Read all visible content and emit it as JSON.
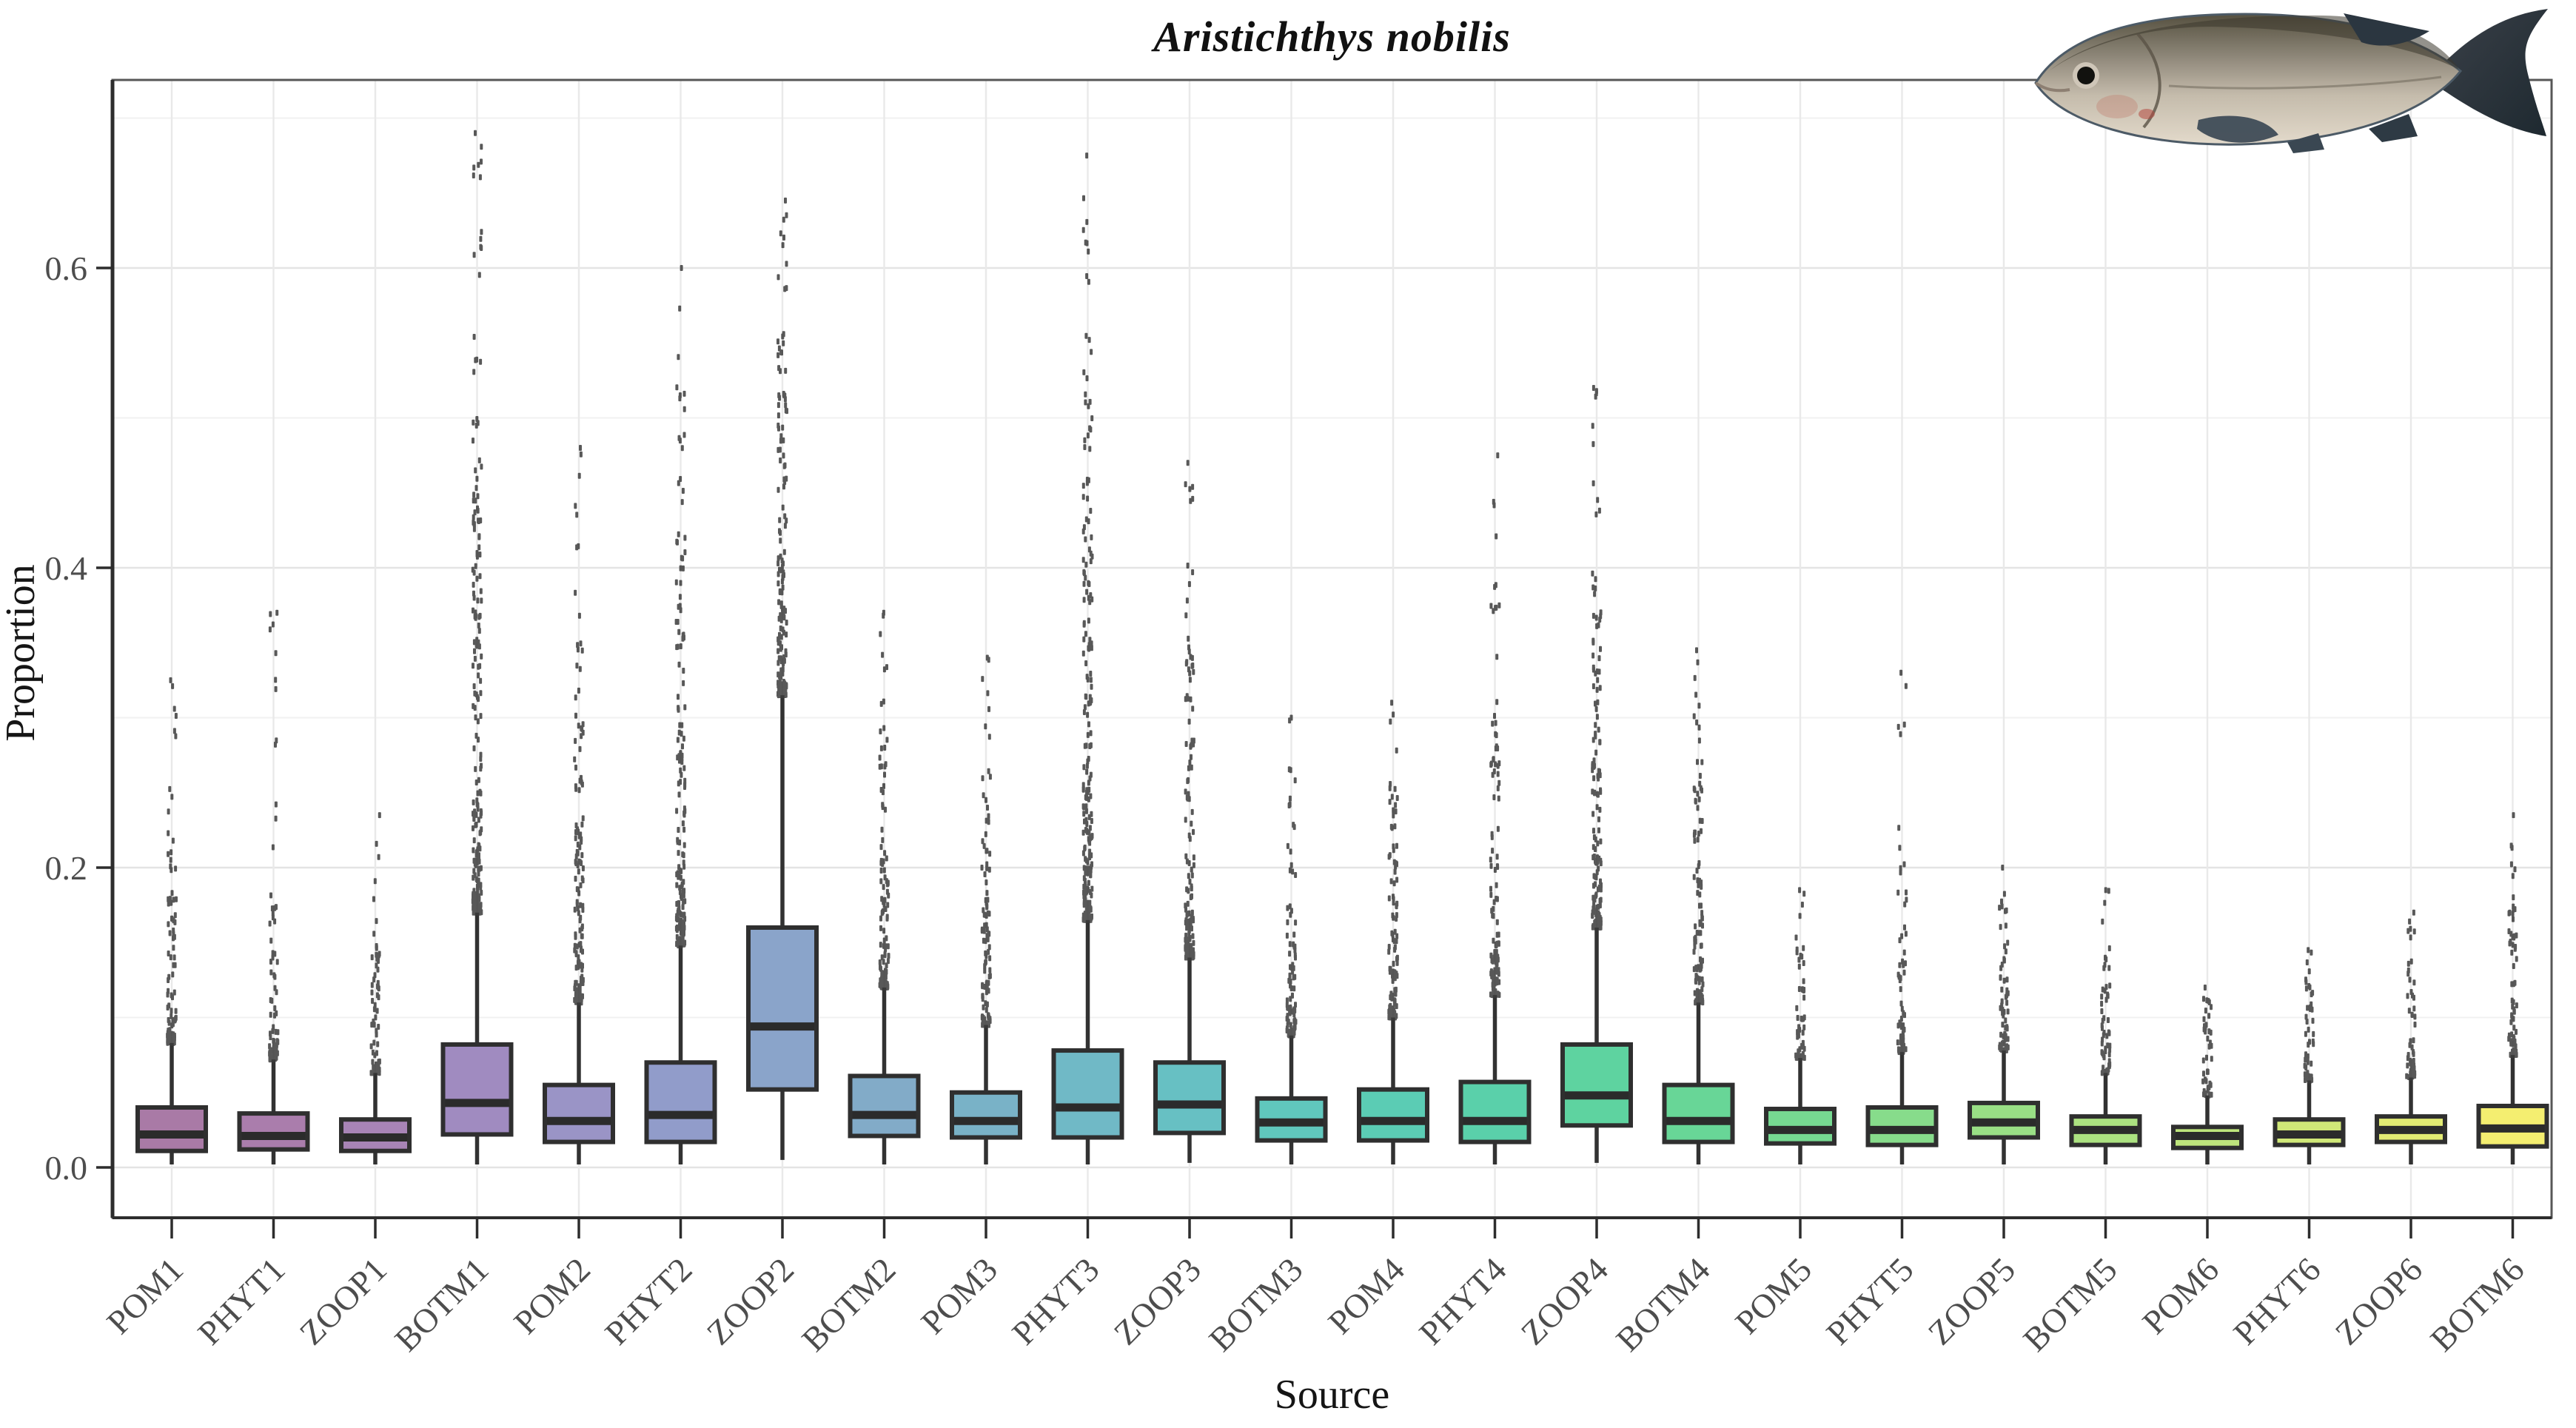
{
  "title": "Aristichthys nobilis",
  "x_axis_title": "Source",
  "y_axis_title": "Proportion",
  "decor": {
    "fish_image_alt": "Photo of Aristichthys nobilis (bighead carp), silver-grey fish facing left, top right corner"
  },
  "style_colors": {
    "box_border": "#2f2f2f",
    "median_line": "#2b2b2b",
    "whisker": "#323232",
    "outlier_dot": "#3c3c3c",
    "tick_text": "#4d4d4d",
    "axis_title_text": "#151515",
    "grid_major": "#e4e4e4",
    "grid_minor": "#f1f1f1",
    "grid_vertical": "#e9e9e9",
    "panel_border": "#575757",
    "axis_line": "#2d2d2d"
  },
  "chart_data": {
    "type": "boxplot",
    "title": "Aristichthys nobilis",
    "xlabel": "Source",
    "ylabel": "Proportion",
    "ylim": [
      -0.035,
      0.726
    ],
    "grid": true,
    "legend": false,
    "y_major_ticks": [
      0.0,
      0.2,
      0.4,
      0.6
    ],
    "y_tick_labels": [
      "0.0",
      "0.2",
      "0.4",
      "0.6"
    ],
    "y_minor_gridlines": [
      0.1,
      0.3,
      0.5,
      0.7
    ],
    "categories": [
      "POM1",
      "PHYT1",
      "ZOOP1",
      "BOTM1",
      "POM2",
      "PHYT2",
      "ZOOP2",
      "BOTM2",
      "POM3",
      "PHYT3",
      "ZOOP3",
      "BOTM3",
      "POM4",
      "PHYT4",
      "ZOOP4",
      "BOTM4",
      "POM5",
      "PHYT5",
      "ZOOP5",
      "BOTM5",
      "POM6",
      "PHYT6",
      "ZOOP6",
      "BOTM6"
    ],
    "boxes": [
      {
        "label": "POM1",
        "fill": "#a97aa6",
        "q1": 0.011,
        "median": 0.022,
        "q3": 0.04,
        "whisker_low": 0.002,
        "whisker_high": 0.083,
        "outliers_dense_to": 0.2,
        "outlier_max": 0.325
      },
      {
        "label": "PHYT1",
        "fill": "#aa7dac",
        "q1": 0.012,
        "median": 0.021,
        "q3": 0.036,
        "whisker_low": 0.002,
        "whisker_high": 0.072,
        "outliers_dense_to": 0.16,
        "outlier_max": 0.37
      },
      {
        "label": "ZOOP1",
        "fill": "#a884b6",
        "q1": 0.011,
        "median": 0.02,
        "q3": 0.032,
        "whisker_low": 0.002,
        "whisker_high": 0.063,
        "outliers_dense_to": 0.14,
        "outlier_max": 0.235
      },
      {
        "label": "BOTM1",
        "fill": "#a08bc0",
        "q1": 0.022,
        "median": 0.043,
        "q3": 0.082,
        "whisker_low": 0.002,
        "whisker_high": 0.17,
        "outliers_dense_to": 0.5,
        "outlier_max": 0.69
      },
      {
        "label": "POM2",
        "fill": "#9a94c6",
        "q1": 0.017,
        "median": 0.031,
        "q3": 0.055,
        "whisker_low": 0.002,
        "whisker_high": 0.11,
        "outliers_dense_to": 0.3,
        "outlier_max": 0.48
      },
      {
        "label": "PHYT2",
        "fill": "#919cca",
        "q1": 0.017,
        "median": 0.035,
        "q3": 0.07,
        "whisker_low": 0.002,
        "whisker_high": 0.148,
        "outliers_dense_to": 0.42,
        "outlier_max": 0.6
      },
      {
        "label": "ZOOP2",
        "fill": "#8aa4ca",
        "q1": 0.052,
        "median": 0.094,
        "q3": 0.16,
        "whisker_low": 0.005,
        "whisker_high": 0.315,
        "outliers_dense_to": 0.55,
        "outlier_max": 0.645
      },
      {
        "label": "BOTM2",
        "fill": "#82abc8",
        "q1": 0.021,
        "median": 0.035,
        "q3": 0.061,
        "whisker_low": 0.002,
        "whisker_high": 0.12,
        "outliers_dense_to": 0.28,
        "outlier_max": 0.37
      },
      {
        "label": "POM3",
        "fill": "#79b2c7",
        "q1": 0.02,
        "median": 0.031,
        "q3": 0.05,
        "whisker_low": 0.002,
        "whisker_high": 0.095,
        "outliers_dense_to": 0.24,
        "outlier_max": 0.34
      },
      {
        "label": "PHYT3",
        "fill": "#70b9c6",
        "q1": 0.02,
        "median": 0.04,
        "q3": 0.078,
        "whisker_low": 0.002,
        "whisker_high": 0.165,
        "outliers_dense_to": 0.5,
        "outlier_max": 0.675
      },
      {
        "label": "ZOOP3",
        "fill": "#67c0c3",
        "q1": 0.023,
        "median": 0.042,
        "q3": 0.07,
        "whisker_low": 0.003,
        "whisker_high": 0.14,
        "outliers_dense_to": 0.34,
        "outlier_max": 0.47
      },
      {
        "label": "BOTM3",
        "fill": "#60c7bd",
        "q1": 0.018,
        "median": 0.03,
        "q3": 0.046,
        "whisker_low": 0.002,
        "whisker_high": 0.088,
        "outliers_dense_to": 0.21,
        "outlier_max": 0.3
      },
      {
        "label": "POM4",
        "fill": "#5bccb4",
        "q1": 0.018,
        "median": 0.031,
        "q3": 0.052,
        "whisker_low": 0.002,
        "whisker_high": 0.1,
        "outliers_dense_to": 0.24,
        "outlier_max": 0.31
      },
      {
        "label": "PHYT4",
        "fill": "#5ad0aa",
        "q1": 0.017,
        "median": 0.031,
        "q3": 0.057,
        "whisker_low": 0.002,
        "whisker_high": 0.115,
        "outliers_dense_to": 0.28,
        "outlier_max": 0.475
      },
      {
        "label": "ZOOP4",
        "fill": "#5ed3a0",
        "q1": 0.028,
        "median": 0.048,
        "q3": 0.082,
        "whisker_low": 0.003,
        "whisker_high": 0.16,
        "outliers_dense_to": 0.38,
        "outlier_max": 0.52
      },
      {
        "label": "BOTM4",
        "fill": "#68d697",
        "q1": 0.017,
        "median": 0.031,
        "q3": 0.055,
        "whisker_low": 0.002,
        "whisker_high": 0.11,
        "outliers_dense_to": 0.26,
        "outlier_max": 0.345
      },
      {
        "label": "POM5",
        "fill": "#76d991",
        "q1": 0.016,
        "median": 0.025,
        "q3": 0.039,
        "whisker_low": 0.002,
        "whisker_high": 0.073,
        "outliers_dense_to": 0.14,
        "outlier_max": 0.185
      },
      {
        "label": "PHYT5",
        "fill": "#87dc8b",
        "q1": 0.015,
        "median": 0.025,
        "q3": 0.04,
        "whisker_low": 0.002,
        "whisker_high": 0.077,
        "outliers_dense_to": 0.15,
        "outlier_max": 0.33
      },
      {
        "label": "ZOOP5",
        "fill": "#99df85",
        "q1": 0.02,
        "median": 0.03,
        "q3": 0.043,
        "whisker_low": 0.002,
        "whisker_high": 0.078,
        "outliers_dense_to": 0.16,
        "outlier_max": 0.2
      },
      {
        "label": "BOTM5",
        "fill": "#ace281",
        "q1": 0.015,
        "median": 0.025,
        "q3": 0.034,
        "whisker_low": 0.002,
        "whisker_high": 0.063,
        "outliers_dense_to": 0.13,
        "outlier_max": 0.185
      },
      {
        "label": "POM6",
        "fill": "#bee57c",
        "q1": 0.013,
        "median": 0.021,
        "q3": 0.027,
        "whisker_low": 0.002,
        "whisker_high": 0.048,
        "outliers_dense_to": 0.1,
        "outlier_max": 0.12
      },
      {
        "label": "PHYT6",
        "fill": "#d0e878",
        "q1": 0.015,
        "median": 0.022,
        "q3": 0.032,
        "whisker_low": 0.002,
        "whisker_high": 0.058,
        "outliers_dense_to": 0.12,
        "outlier_max": 0.145
      },
      {
        "label": "ZOOP6",
        "fill": "#e2eb73",
        "q1": 0.017,
        "median": 0.025,
        "q3": 0.034,
        "whisker_low": 0.002,
        "whisker_high": 0.06,
        "outliers_dense_to": 0.13,
        "outlier_max": 0.17
      },
      {
        "label": "BOTM6",
        "fill": "#f4ee70",
        "q1": 0.014,
        "median": 0.026,
        "q3": 0.041,
        "whisker_low": 0.002,
        "whisker_high": 0.075,
        "outliers_dense_to": 0.17,
        "outlier_max": 0.235
      }
    ]
  }
}
